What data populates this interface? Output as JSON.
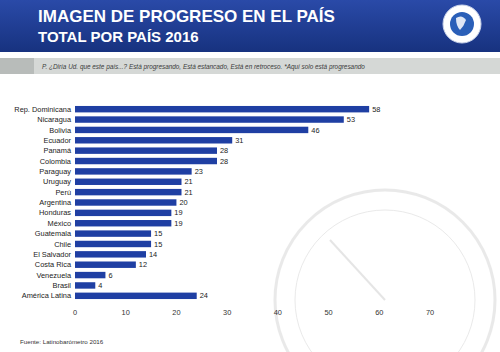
{
  "chart_data": {
    "type": "bar",
    "title": "IMAGEN DE PROGRESO EN EL PAÍS",
    "subtitle": "TOTAL POR PAÍS 2016",
    "annotations": [
      "P. ¿Diría Ud. que este país...? Está progresando, Está estancado, Está en retroceso. *Aquí solo está progresando",
      "Fuente: Latinobarómetro 2016"
    ],
    "orientation": "horizontal",
    "categories": [
      "Rep. Dominicana",
      "Nicaragua",
      "Bolivia",
      "Ecuador",
      "Panamá",
      "Colombia",
      "Paraguay",
      "Uruguay",
      "Perú",
      "Argentina",
      "Honduras",
      "México",
      "Guatemala",
      "Chile",
      "El Salvador",
      "Costa Rica",
      "Venezuela",
      "Brasil",
      "América Latina"
    ],
    "values": [
      58,
      53,
      46,
      31,
      28,
      28,
      23,
      21,
      21,
      20,
      19,
      19,
      15,
      15,
      14,
      12,
      6,
      4,
      24
    ],
    "color": "#1f3fa3",
    "xlim": [
      0,
      70
    ],
    "xticks": [
      0,
      10,
      20,
      30,
      40,
      50,
      60,
      70
    ],
    "grid": false,
    "data_labels": true
  }
}
